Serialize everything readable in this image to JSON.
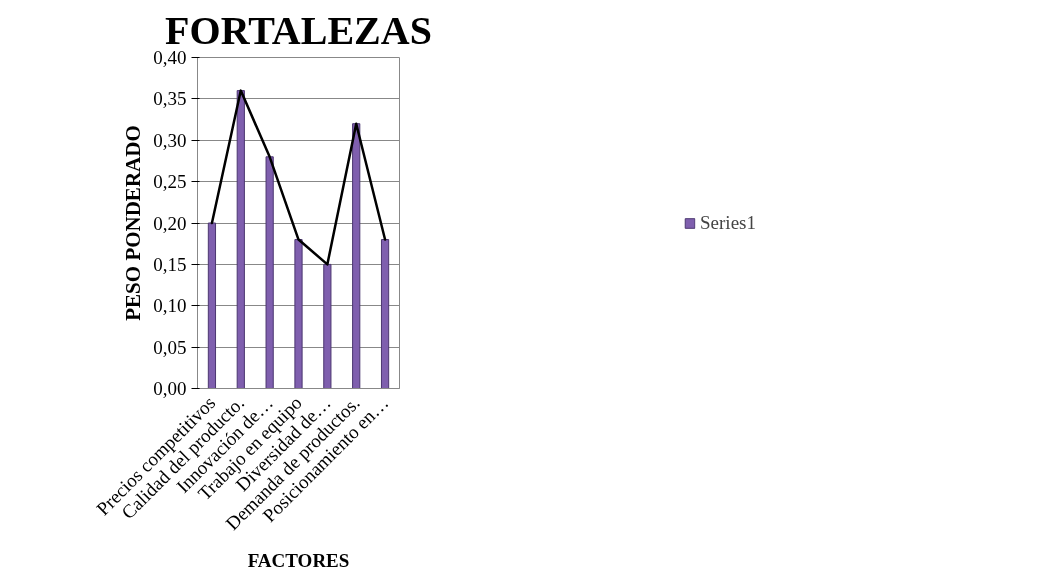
{
  "chart_data": {
    "type": "bar",
    "title": "FORTALEZAS",
    "xlabel": "FACTORES",
    "ylabel": "PESO PONDERADO",
    "categories": [
      "Precios competitivos",
      "Calidad del producto.",
      "Innovación de…",
      "Trabajo en equipo",
      "Diversidad de…",
      "Demanda de productos.",
      "Posicionamiento en…"
    ],
    "series": [
      {
        "name": "Series1",
        "color": "#7f5fae",
        "values": [
          0.2,
          0.36,
          0.28,
          0.18,
          0.15,
          0.32,
          0.18
        ]
      },
      {
        "type": "line",
        "color": "#000000",
        "values": [
          0.2,
          0.36,
          0.28,
          0.18,
          0.15,
          0.32,
          0.18
        ]
      }
    ],
    "ylim": [
      0,
      0.4
    ],
    "yticks": [
      {
        "value": 0,
        "label": "0,00"
      },
      {
        "value": 0.05,
        "label": "0,05"
      },
      {
        "value": 0.1,
        "label": "0,10"
      },
      {
        "value": 0.15,
        "label": "0,15"
      },
      {
        "value": 0.2,
        "label": "0,20"
      },
      {
        "value": 0.25,
        "label": "0,25"
      },
      {
        "value": 0.3,
        "label": "0,30"
      },
      {
        "value": 0.35,
        "label": "0,35"
      },
      {
        "value": 0.4,
        "label": "0,40"
      }
    ],
    "grid": "y",
    "legend": "right"
  }
}
